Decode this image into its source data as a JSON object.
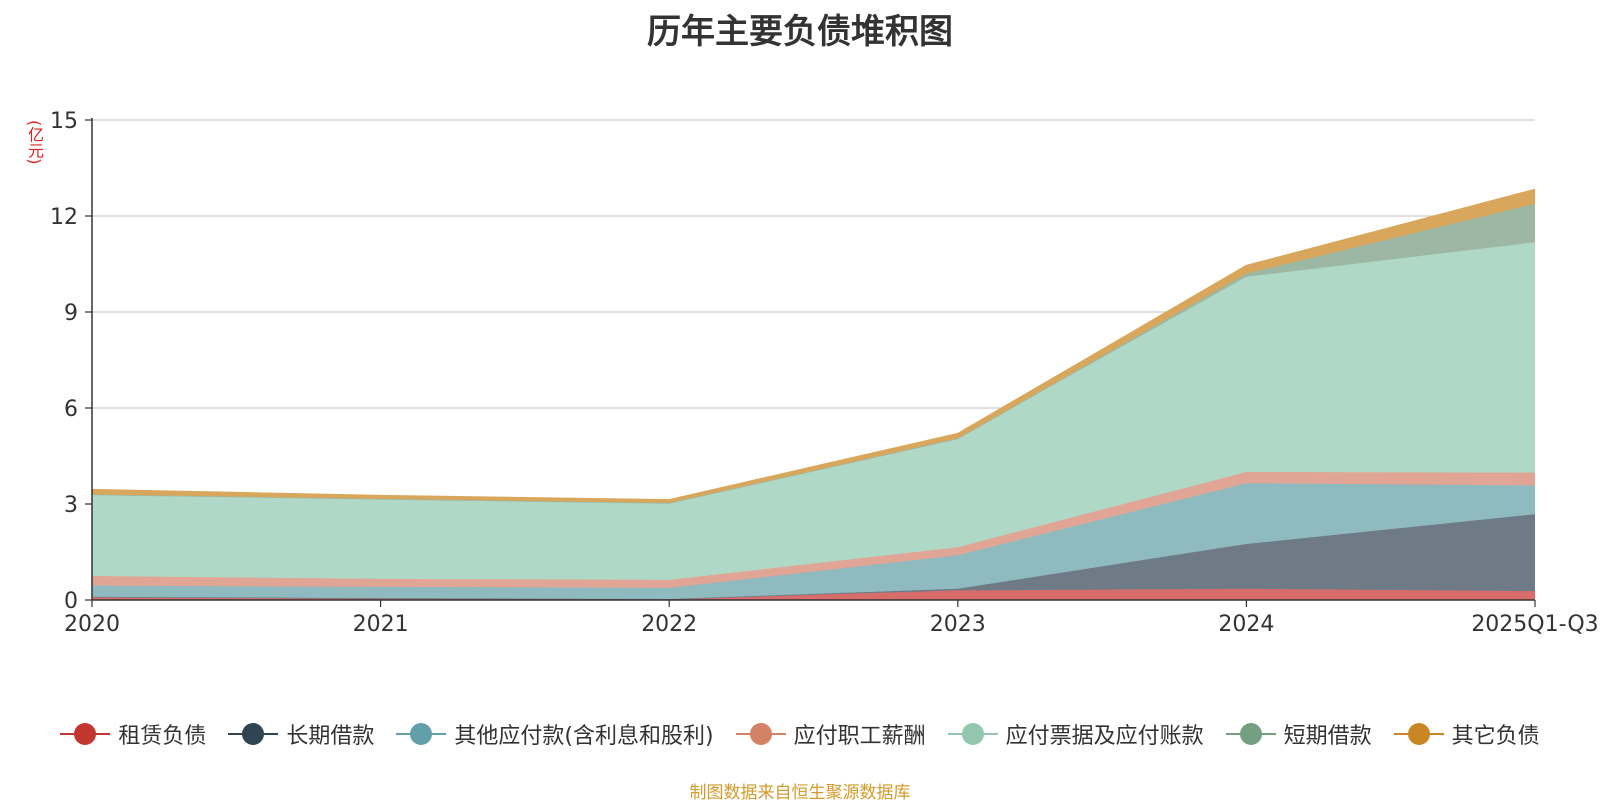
{
  "chart_data": {
    "type": "area",
    "stacked": true,
    "title": "历年主要负债堆积图",
    "ylabel": "(亿元)",
    "ylim": [
      0,
      15
    ],
    "yticks": [
      "0",
      "3",
      "6",
      "9",
      "12",
      "15"
    ],
    "categories": [
      "2020",
      "2021",
      "2022",
      "2023",
      "2024",
      "2025Q1-Q3"
    ],
    "grid": true,
    "legend_position": "bottom",
    "series": [
      {
        "name": "租赁负债",
        "color": "#c23531",
        "fill": "#d66d6b",
        "values": [
          0.1,
          0.06,
          0.03,
          0.3,
          0.35,
          0.28
        ]
      },
      {
        "name": "长期借款",
        "color": "#2f4554",
        "fill": "#6e7b86",
        "values": [
          0.0,
          0.0,
          0.0,
          0.05,
          1.4,
          2.4
        ]
      },
      {
        "name": "其他应付款(含利息和股利)",
        "color": "#61a0a8",
        "fill": "#8fbabf",
        "values": [
          0.35,
          0.35,
          0.35,
          1.05,
          1.9,
          0.9
        ]
      },
      {
        "name": "应付职工薪酬",
        "color": "#d48265",
        "fill": "#e1a595",
        "values": [
          0.3,
          0.25,
          0.25,
          0.25,
          0.35,
          0.4
        ]
      },
      {
        "name": "应付票据及应付账款",
        "color": "#91c7ae",
        "fill": "#b0d8c6",
        "values": [
          2.55,
          2.5,
          2.4,
          3.4,
          6.1,
          7.2
        ]
      },
      {
        "name": "短期借款",
        "color": "#749f83",
        "fill": "#9cb8a5",
        "values": [
          0.0,
          0.0,
          0.0,
          0.0,
          0.1,
          1.2
        ]
      },
      {
        "name": "其它负债",
        "color": "#ca8622",
        "fill": "#d9a75c",
        "values": [
          0.15,
          0.1,
          0.1,
          0.15,
          0.25,
          0.45
        ]
      }
    ]
  },
  "source_note": "制图数据来自恒生聚源数据库"
}
